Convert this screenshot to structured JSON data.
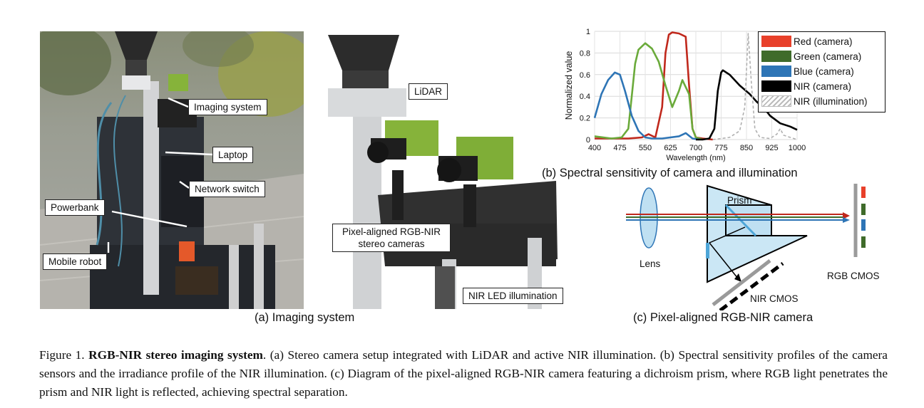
{
  "panel_a": {
    "callouts": {
      "imaging_system": "Imaging system",
      "laptop": "Laptop",
      "network_switch": "Network switch",
      "powerbank": "Powerbank",
      "mobile_robot": "Mobile robot",
      "lidar": "LiDAR",
      "stereo_line1": "Pixel-aligned RGB-NIR",
      "stereo_line2": "stereo cameras",
      "nir_led": "NIR LED illumination"
    },
    "caption": "(a) Imaging system"
  },
  "panel_b": {
    "caption": "(b) Spectral sensitivity of camera and illumination",
    "legend": {
      "red": "Red (camera)",
      "green": "Green (camera)",
      "blue": "Blue (camera)",
      "nir": "NIR (camera)",
      "nir_illum": "NIR (illumination)"
    },
    "colors": {
      "red": "#c0281c",
      "green": "#6aaa3a",
      "blue": "#2e75b6",
      "nir": "#000000",
      "nir_illum": "#b0b0b0"
    }
  },
  "chart_data": {
    "type": "line",
    "xlabel": "Wavelength (nm)",
    "ylabel": "Normalized value",
    "xlim": [
      400,
      1000
    ],
    "ylim": [
      0,
      1
    ],
    "xticks": [
      "400",
      "475",
      "550",
      "625",
      "700",
      "775",
      "850",
      "925",
      "1000"
    ],
    "yticks": [
      "0",
      "0.2",
      "0.4",
      "0.6",
      "0.8",
      "1"
    ],
    "grid": true,
    "legend_position": "top-right",
    "series": [
      {
        "name": "Red (camera)",
        "style": "solid",
        "x": [
          400,
          450,
          500,
          540,
          560,
          580,
          600,
          610,
          620,
          630,
          650,
          670,
          680,
          690,
          700,
          720,
          750
        ],
        "y": [
          0.01,
          0.01,
          0.01,
          0.02,
          0.05,
          0.02,
          0.3,
          0.8,
          0.97,
          0.99,
          0.98,
          0.95,
          0.5,
          0.1,
          0.02,
          0.01,
          0.0
        ]
      },
      {
        "name": "Green (camera)",
        "style": "solid",
        "x": [
          400,
          450,
          480,
          500,
          510,
          520,
          530,
          550,
          570,
          590,
          610,
          630,
          650,
          660,
          680,
          690,
          700,
          720
        ],
        "y": [
          0.03,
          0.01,
          0.02,
          0.1,
          0.4,
          0.7,
          0.83,
          0.89,
          0.84,
          0.72,
          0.5,
          0.3,
          0.45,
          0.55,
          0.42,
          0.1,
          0.02,
          0.0
        ]
      },
      {
        "name": "Blue (camera)",
        "style": "solid",
        "x": [
          400,
          420,
          440,
          460,
          475,
          490,
          510,
          530,
          550,
          570,
          600,
          650,
          670,
          690,
          710
        ],
        "y": [
          0.2,
          0.42,
          0.55,
          0.62,
          0.6,
          0.45,
          0.22,
          0.08,
          0.02,
          0.01,
          0.01,
          0.03,
          0.06,
          0.01,
          0.0
        ]
      },
      {
        "name": "NIR (camera)",
        "style": "solid",
        "x": [
          700,
          720,
          740,
          755,
          765,
          775,
          780,
          800,
          830,
          860,
          880,
          900,
          920,
          950,
          980,
          1000
        ],
        "y": [
          0.0,
          0.0,
          0.01,
          0.1,
          0.45,
          0.62,
          0.64,
          0.6,
          0.5,
          0.42,
          0.35,
          0.3,
          0.22,
          0.15,
          0.12,
          0.09
        ]
      },
      {
        "name": "NIR (illumination)",
        "style": "dashed",
        "x": [
          750,
          800,
          830,
          845,
          855,
          865,
          875,
          890,
          920,
          940,
          950,
          960,
          980,
          1000
        ],
        "y": [
          0.0,
          0.02,
          0.08,
          0.3,
          0.98,
          0.5,
          0.1,
          0.02,
          0.01,
          0.05,
          0.1,
          0.04,
          0.02,
          0.0
        ]
      }
    ]
  },
  "panel_c": {
    "labels": {
      "prism": "Prism",
      "lens": "Lens",
      "rgb_cmos": "RGB CMOS",
      "nir_cmos": "NIR CMOS"
    },
    "caption": "(c) Pixel-aligned RGB-NIR camera"
  },
  "figure_caption": {
    "prefix": "Figure 1. ",
    "bold": "RGB-NIR stereo imaging system",
    "rest": ". (a) Stereo camera setup integrated with LiDAR and active NIR illumination. (b) Spectral sensitivity profiles of the camera sensors and the irradiance profile of the NIR illumination. (c) Diagram of the pixel-aligned RGB-NIR camera featuring a dichroism prism, where RGB light penetrates the prism and NIR light is reflected, achieving spectral separation."
  }
}
